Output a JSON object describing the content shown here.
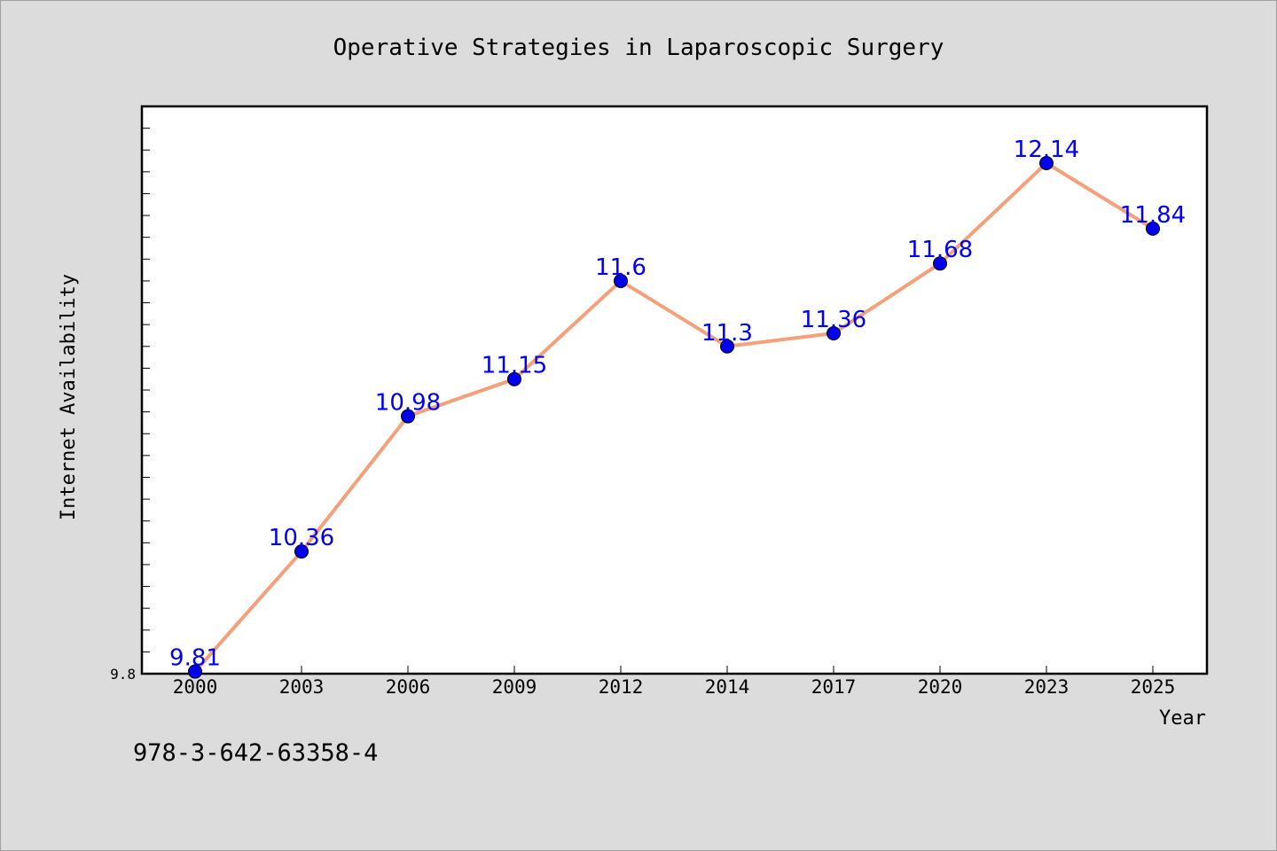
{
  "chart_data": {
    "type": "line",
    "title": "Operative Strategies in Laparoscopic Surgery",
    "xlabel": "Year",
    "ylabel": "Internet Availability",
    "categories": [
      "2000",
      "2003",
      "2006",
      "2009",
      "2012",
      "2014",
      "2017",
      "2020",
      "2023",
      "2025"
    ],
    "series": [
      {
        "values": [
          9.81,
          10.36,
          10.98,
          11.15,
          11.6,
          11.3,
          11.36,
          11.68,
          12.14,
          11.84
        ]
      }
    ],
    "data_labels": [
      "9.81",
      "10.36",
      "10.98",
      "11.15",
      "11.6",
      "11.3",
      "11.36",
      "11.68",
      "12.14",
      "11.84"
    ],
    "ylim": [
      9.8,
      12.4
    ],
    "yticks_labeled": [
      "9.8"
    ],
    "grid": false,
    "legend": "none",
    "colors": {
      "line": "#f4a07a",
      "marker": "#0000ee",
      "label": "#0000ee",
      "plot_background": "#ffffff",
      "page_background": "#dcdcdc"
    }
  },
  "footer": {
    "isbn": "978-3-642-63358-4"
  }
}
